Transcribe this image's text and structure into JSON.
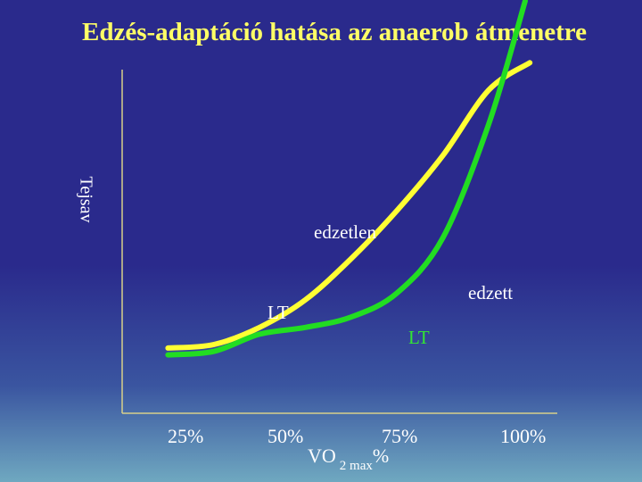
{
  "chart_data": {
    "type": "line",
    "title": "Edzés-adaptáció hatása az anaerob átmenetre",
    "ylabel": "Tejsav",
    "xlabel": {
      "main": "VO",
      "sub": "2 max",
      "suffix": "%"
    },
    "x_ticks": [
      "25%",
      "50%",
      "75%",
      "100%"
    ],
    "xlim": [
      15,
      110
    ],
    "ylim": [
      0,
      100
    ],
    "grid": false,
    "series": [
      {
        "name": "edzetlen",
        "color": "#ffff33",
        "x": [
          25,
          35,
          45,
          55,
          65,
          75,
          85,
          95,
          104
        ],
        "y": [
          19,
          20,
          25,
          33,
          45,
          59,
          75,
          94,
          102
        ]
      },
      {
        "name": "edzett",
        "color": "#22dd22",
        "x": [
          25,
          35,
          45,
          55,
          65,
          75,
          85,
          95,
          103
        ],
        "y": [
          17,
          18,
          23,
          25,
          28,
          35,
          51,
          84,
          120
        ]
      }
    ],
    "annotations": [
      {
        "text": "edzetlen",
        "color": "#ffffff"
      },
      {
        "text": "edzett",
        "color": "#ffffff"
      },
      {
        "text": "LT",
        "color": "#ffffff"
      },
      {
        "text": "LT",
        "color": "#33e633"
      }
    ]
  }
}
